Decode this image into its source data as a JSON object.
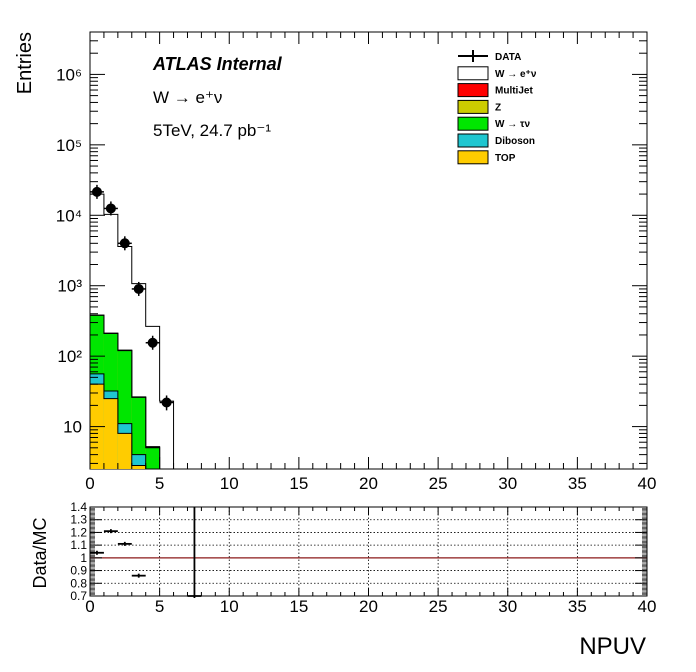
{
  "chart_data": [
    {
      "type": "histogram",
      "ylabel": "Entries",
      "xlim": [
        0,
        40
      ],
      "ylim": [
        2.5,
        4000000
      ],
      "yscale": "log",
      "grid": false,
      "legend_position": "top-right",
      "annotations": [
        "ATLAS Internal",
        "W → e⁺ν",
        "5TeV, 24.7 pb⁻¹"
      ],
      "x_ticks": [
        "0",
        "5",
        "10",
        "15",
        "20",
        "25",
        "30",
        "35",
        "40"
      ],
      "y_ticks": [
        {
          "value": 10,
          "label": "10"
        },
        {
          "value": 100,
          "label": "10²"
        },
        {
          "value": 1000,
          "label": "10³"
        },
        {
          "value": 10000,
          "label": "10⁴"
        },
        {
          "value": 100000,
          "label": "10⁵"
        },
        {
          "value": 1000000,
          "label": "10⁶"
        }
      ],
      "bin_edges": [
        0,
        1,
        2,
        3,
        4,
        5,
        6,
        7
      ],
      "stack": [
        {
          "name": "TOP",
          "color": "#ffcc00",
          "values": [
            40,
            25,
            8,
            2.8,
            0,
            0,
            0
          ]
        },
        {
          "name": "Diboson",
          "color": "#1fc6d0",
          "values": [
            56,
            32,
            11,
            4.0,
            0,
            0,
            0
          ]
        },
        {
          "name": "W → τν",
          "color": "#00e600",
          "values": [
            380,
            210,
            120,
            26,
            5,
            0,
            0
          ]
        },
        {
          "name": "Z",
          "color": "#cccc00",
          "values": [
            381,
            211,
            121,
            26.2,
            5.1,
            0,
            0
          ]
        },
        {
          "name": "MultiJet",
          "color": "#ff0000",
          "values": [
            382,
            212,
            122,
            26.4,
            5.2,
            0,
            0
          ]
        },
        {
          "name": "W → e⁺ν",
          "color": "#ffffff",
          "values": [
            20000,
            10300,
            3600,
            1070,
            265,
            23,
            0
          ]
        }
      ],
      "data": {
        "name": "DATA",
        "x": [
          0.5,
          1.5,
          2.5,
          3.5,
          4.5,
          5.5
        ],
        "y": [
          21500,
          12500,
          4000,
          900,
          155,
          22
        ],
        "yerr": [
          150,
          110,
          63,
          30,
          12,
          5
        ]
      },
      "legend": [
        {
          "label": "DATA",
          "kind": "marker",
          "color": "#000000"
        },
        {
          "label": "W  → e⁺ν",
          "kind": "box",
          "color": "#ffffff"
        },
        {
          "label": "MultiJet",
          "kind": "box",
          "color": "#ff0000"
        },
        {
          "label": "Z",
          "kind": "box",
          "color": "#cccc00"
        },
        {
          "label": "W  →  τν",
          "kind": "box",
          "color": "#00e600"
        },
        {
          "label": "Diboson",
          "kind": "box",
          "color": "#1fc6d0"
        },
        {
          "label": "TOP",
          "kind": "box",
          "color": "#ffcc00"
        }
      ]
    },
    {
      "type": "scatter",
      "xlabel": "NPUV",
      "ylabel": "Data/MC",
      "xlim": [
        0,
        40
      ],
      "ylim": [
        0.7,
        1.4
      ],
      "grid": true,
      "x_ticks": [
        "0",
        "5",
        "10",
        "15",
        "20",
        "25",
        "30",
        "35",
        "40"
      ],
      "y_ticks": [
        "0.7",
        "0.8",
        "0.9",
        "1",
        "1.1",
        "1.2",
        "1.3",
        "1.4"
      ],
      "reference_line": 1.0,
      "reference_color": "#8b1a1a",
      "points": {
        "x": [
          0.5,
          1.5,
          2.5,
          3.5,
          7.5
        ],
        "y": [
          1.04,
          1.21,
          1.11,
          0.86,
          0.7
        ],
        "yerr": [
          0.01,
          0.01,
          0.015,
          0.01,
          1.0
        ]
      }
    }
  ]
}
